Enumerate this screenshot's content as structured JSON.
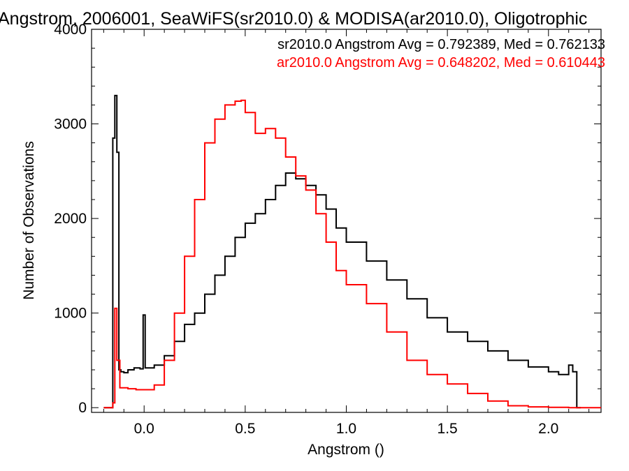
{
  "chart_data": {
    "type": "line",
    "step": true,
    "title": "Angstrom, 2006001, SeaWiFS(sr2010.0) & MODISA(ar2010.0), Oligotrophic",
    "xlabel": "Angstrom ()",
    "ylabel": "Number of Observations",
    "xlim": [
      -0.26,
      2.26
    ],
    "ylim": [
      -50,
      4000
    ],
    "xticks": [
      0.0,
      0.5,
      1.0,
      1.5,
      2.0
    ],
    "xtick_labels": [
      "0.0",
      "0.5",
      "1.0",
      "1.5",
      "2.0"
    ],
    "yticks": [
      0,
      1000,
      2000,
      3000,
      4000
    ],
    "ytick_labels": [
      "0",
      "1000",
      "2000",
      "3000",
      "4000"
    ],
    "grid": false,
    "legend_position": "top-right",
    "annotations": [
      {
        "text": "sr2010.0 Angstrom Avg = 0.792389, Med = 0.762133",
        "color": "#000000"
      },
      {
        "text": "ar2010.0 Angstrom Avg = 0.648202, Med = 0.610443",
        "color": "#ff0000"
      }
    ],
    "series": [
      {
        "color": "#000000",
        "x": [
          -0.2,
          -0.16,
          -0.155,
          -0.145,
          -0.135,
          -0.125,
          -0.115,
          -0.1,
          -0.08,
          -0.05,
          -0.02,
          -0.005,
          0.005,
          0.05,
          0.1,
          0.15,
          0.2,
          0.25,
          0.3,
          0.35,
          0.4,
          0.45,
          0.5,
          0.55,
          0.6,
          0.65,
          0.7,
          0.75,
          0.8,
          0.85,
          0.9,
          0.95,
          1.0,
          1.1,
          1.2,
          1.3,
          1.4,
          1.5,
          1.6,
          1.7,
          1.8,
          1.9,
          2.0,
          2.05,
          2.1,
          2.12,
          2.14,
          2.16
        ],
        "values": [
          0,
          0,
          2850,
          3300,
          2700,
          400,
          380,
          370,
          400,
          420,
          410,
          980,
          420,
          450,
          550,
          700,
          880,
          1000,
          1200,
          1400,
          1600,
          1800,
          1950,
          2050,
          2200,
          2350,
          2480,
          2420,
          2350,
          2250,
          2100,
          1900,
          1750,
          1550,
          1350,
          1150,
          950,
          800,
          700,
          600,
          500,
          430,
          380,
          350,
          450,
          380,
          0,
          0
        ]
      },
      {
        "color": "#ff0000",
        "x": [
          -0.2,
          -0.16,
          -0.155,
          -0.145,
          -0.135,
          -0.12,
          -0.08,
          -0.04,
          0.0,
          0.05,
          0.1,
          0.15,
          0.2,
          0.25,
          0.3,
          0.35,
          0.4,
          0.45,
          0.48,
          0.5,
          0.55,
          0.6,
          0.65,
          0.7,
          0.75,
          0.8,
          0.85,
          0.9,
          0.95,
          1.0,
          1.1,
          1.2,
          1.3,
          1.4,
          1.5,
          1.6,
          1.7,
          1.8,
          1.9,
          2.0,
          2.1,
          2.2,
          2.26
        ],
        "values": [
          0,
          0,
          50,
          1050,
          500,
          210,
          200,
          190,
          190,
          240,
          500,
          1000,
          1600,
          2200,
          2800,
          3050,
          3200,
          3240,
          3250,
          3120,
          2900,
          2950,
          2850,
          2650,
          2450,
          2300,
          2050,
          1750,
          1450,
          1300,
          1100,
          800,
          500,
          350,
          250,
          150,
          70,
          20,
          8,
          3,
          0,
          0,
          0
        ]
      }
    ]
  }
}
